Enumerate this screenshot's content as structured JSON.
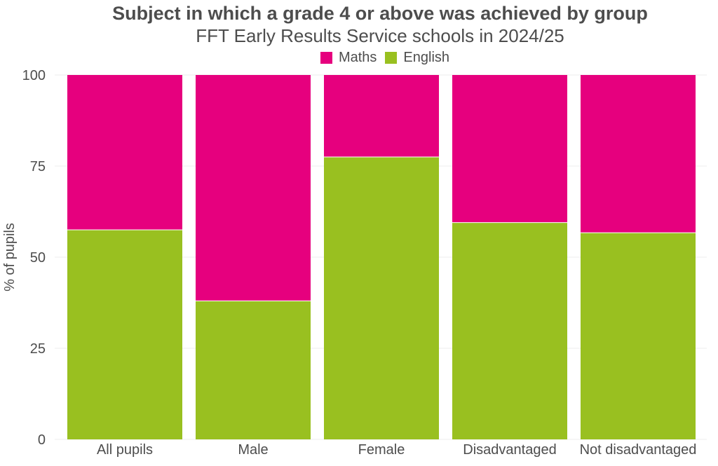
{
  "colors": {
    "Maths": "#e6007e",
    "English": "#99c020",
    "grid": "#ececec",
    "text": "#4d4d4d"
  },
  "chart_data": {
    "type": "bar",
    "stacked": true,
    "title": "Subject in which a grade 4 or above was achieved by group",
    "subtitle": "FFT Early Results Service schools in 2024/25",
    "ylabel": "% of pupils",
    "xlabel": "",
    "ylim": [
      0,
      100
    ],
    "yticks": [
      0,
      25,
      50,
      75,
      100
    ],
    "grid": true,
    "legend_position": "top",
    "categories": [
      "All pupils",
      "Male",
      "Female",
      "Disadvantaged",
      "Not disadvantaged"
    ],
    "series": [
      {
        "name": "English",
        "values": [
          57.5,
          38,
          77.5,
          59.5,
          56.7
        ]
      },
      {
        "name": "Maths",
        "values": [
          42.5,
          62,
          22.5,
          40.5,
          43.3
        ]
      }
    ],
    "legend": [
      "Maths",
      "English"
    ]
  }
}
